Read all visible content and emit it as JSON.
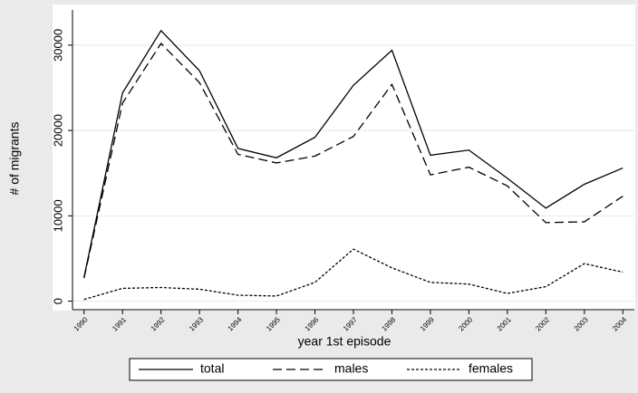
{
  "chart_data": {
    "type": "line",
    "x": [
      1990,
      1991,
      1992,
      1993,
      1994,
      1995,
      1996,
      1997,
      1998,
      1999,
      2000,
      2001,
      2002,
      2003,
      2004
    ],
    "series": [
      {
        "name": "total",
        "color": "#000000",
        "dash": "solid",
        "values": [
          2800,
          24400,
          31700,
          27000,
          17900,
          16800,
          19200,
          25300,
          29400,
          17100,
          17700,
          14400,
          10900,
          13700,
          15600
        ]
      },
      {
        "name": "males",
        "color": "#000000",
        "dash": "dashed",
        "values": [
          2700,
          23200,
          30200,
          25600,
          17200,
          16200,
          17000,
          19300,
          25400,
          14800,
          15700,
          13500,
          9200,
          9300,
          12300
        ]
      },
      {
        "name": "females",
        "color": "#000000",
        "dash": "dotted",
        "values": [
          200,
          1500,
          1600,
          1400,
          700,
          600,
          2200,
          6100,
          3900,
          2200,
          2000,
          900,
          1700,
          4400,
          3400
        ]
      }
    ],
    "xlabel": "year 1st episode",
    "ylabel": "# of migrants",
    "xlim": [
      1989.7,
      2004.3
    ],
    "ylim": [
      -1000,
      32000
    ],
    "xticks": [
      1990,
      1991,
      1992,
      1993,
      1994,
      1995,
      1996,
      1997,
      1998,
      1999,
      2000,
      2001,
      2002,
      2003,
      2004
    ],
    "yticks": [
      0,
      10000,
      20000,
      30000
    ],
    "grid": true,
    "legend": "bottom"
  }
}
